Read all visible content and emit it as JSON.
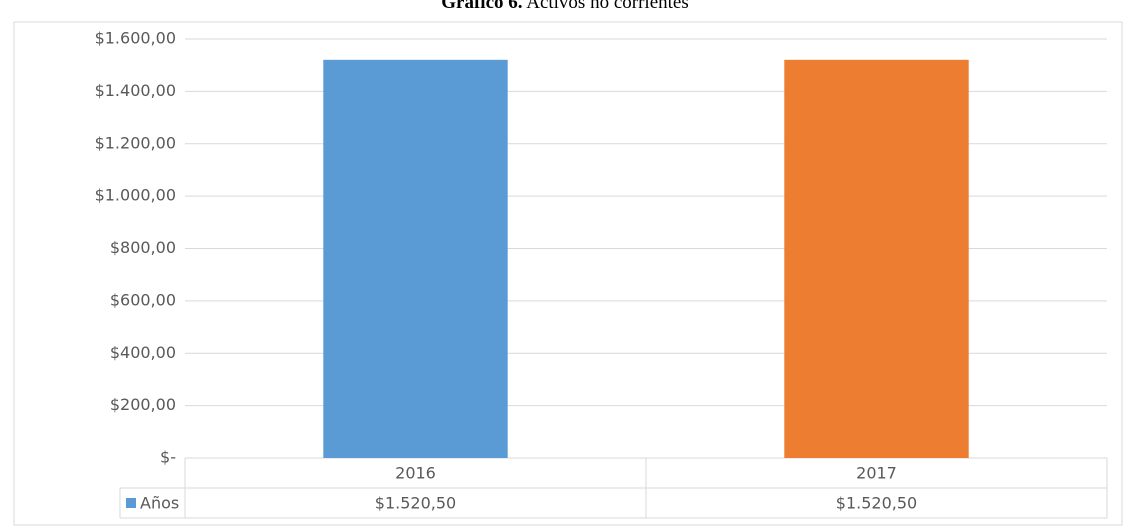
{
  "chart_data": {
    "type": "bar",
    "title_label": "Gráfico 6.",
    "title": "Activos no corrientes",
    "categories": [
      "2016",
      "2017"
    ],
    "series": [
      {
        "name": "Años",
        "color": "#5b9bd5",
        "point_colors": [
          "#5b9bd5",
          "#ed7d31"
        ],
        "values": [
          1520.5,
          1520.5
        ],
        "value_labels": [
          "$1.520,50",
          "$1.520,50"
        ]
      }
    ],
    "ylim": [
      0,
      1600
    ],
    "yticks": [
      {
        "value": 0,
        "label": "$-"
      },
      {
        "value": 200,
        "label": "$200,00"
      },
      {
        "value": 400,
        "label": "$400,00"
      },
      {
        "value": 600,
        "label": "$600,00"
      },
      {
        "value": 800,
        "label": "$800,00"
      },
      {
        "value": 1000,
        "label": "$1.000,00"
      },
      {
        "value": 1200,
        "label": "$1.200,00"
      },
      {
        "value": 1400,
        "label": "$1.400,00"
      },
      {
        "value": 1600,
        "label": "$1.600,00"
      }
    ],
    "grid": true
  }
}
